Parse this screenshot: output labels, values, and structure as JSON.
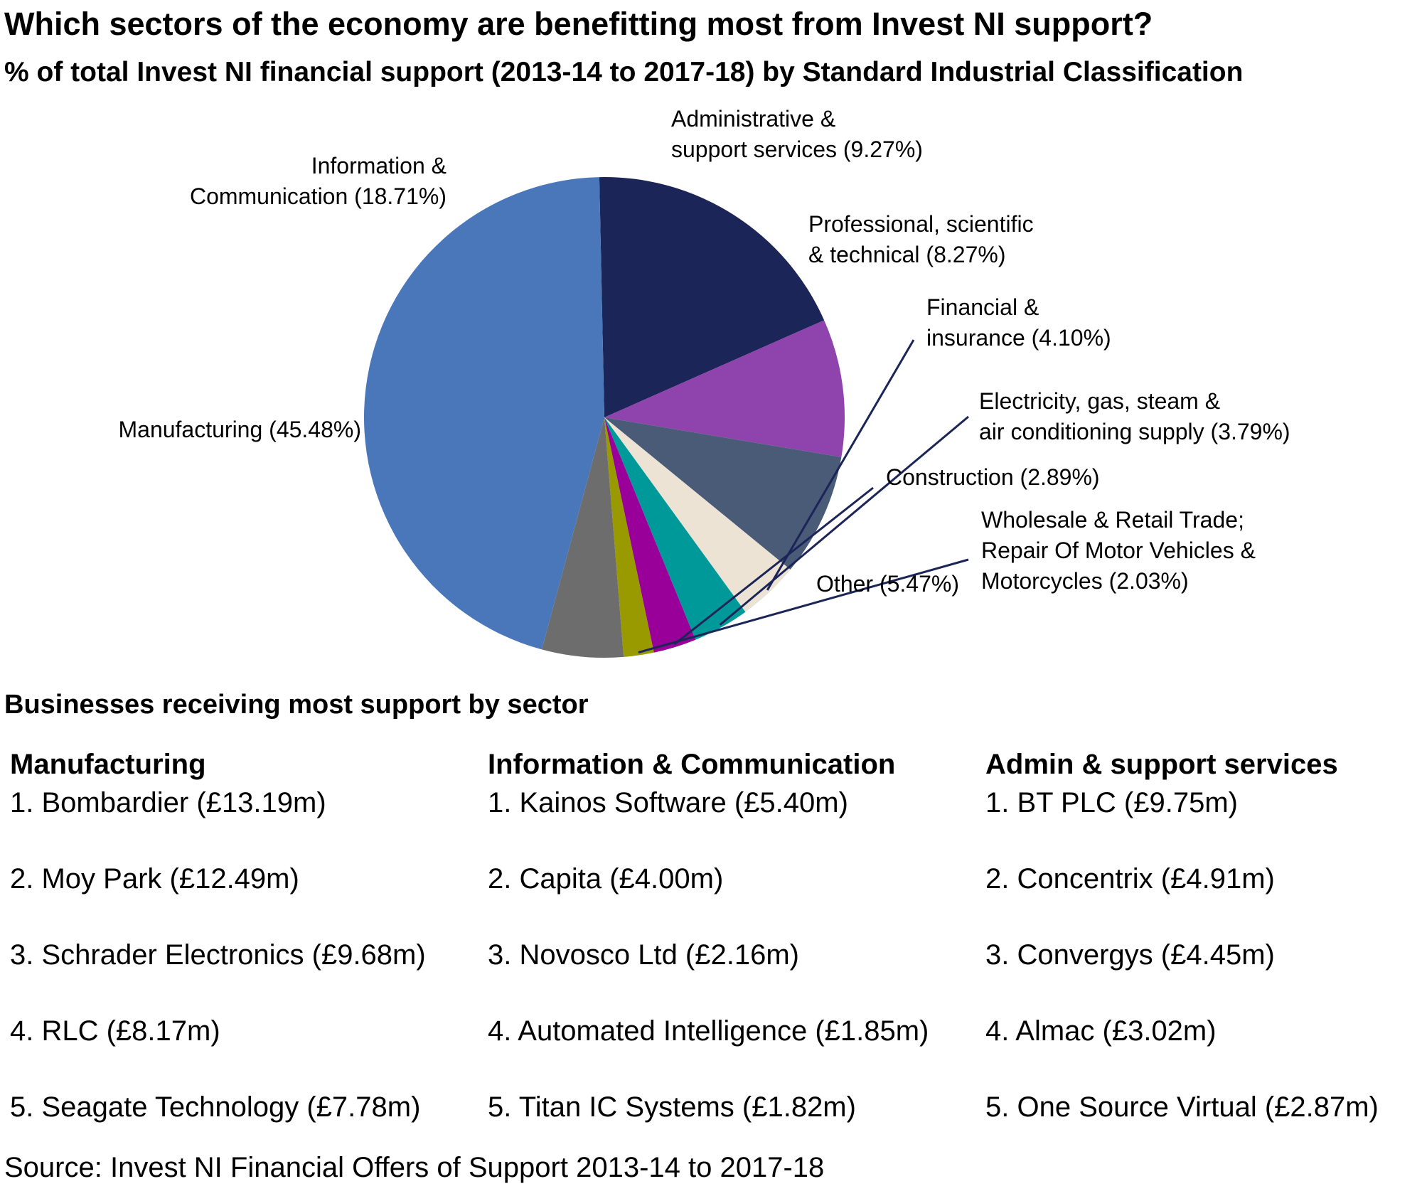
{
  "title": "Which sectors of the economy are benefitting most from Invest NI support?",
  "subtitle": "% of total Invest NI financial support (2013-14 to 2017-18) by Standard Industrial Classification",
  "chart_data": {
    "type": "pie",
    "title": "% of total Invest NI financial support (2013-14 to 2017-18) by Standard Industrial Classification",
    "slices": [
      {
        "label_lines": [
          "Information &",
          "Communication (18.71%)"
        ],
        "value": 18.71,
        "color": "#1c2557"
      },
      {
        "label_lines": [
          "Administrative &",
          "support services (9.27%)"
        ],
        "value": 9.27,
        "color": "#8e43ad"
      },
      {
        "label_lines": [
          "Professional, scientific",
          "& technical (8.27%)"
        ],
        "value": 8.27,
        "color": "#4a5b78"
      },
      {
        "label_lines": [
          "Financial &",
          "insurance (4.10%)"
        ],
        "value": 4.1,
        "color": "#ede3d4"
      },
      {
        "label_lines": [
          "Electricity, gas, steam &",
          "air conditioning supply  (3.79%)"
        ],
        "value": 3.79,
        "color": "#00999a"
      },
      {
        "label_lines": [
          "Construction (2.89%)"
        ],
        "value": 2.89,
        "color": "#990099"
      },
      {
        "label_lines": [
          "Wholesale & Retail Trade;",
          "Repair Of Motor Vehicles &",
          "Motorcycles (2.03%)"
        ],
        "value": 2.03,
        "color": "#999900"
      },
      {
        "label_lines": [
          "Other (5.47%)"
        ],
        "value": 5.47,
        "color": "#6d6d6d"
      },
      {
        "label_lines": [
          "Manufacturing (45.48%)"
        ],
        "value": 45.48,
        "color": "#4a77ba"
      }
    ],
    "leader_line_color": "#1c2557"
  },
  "businesses": {
    "heading": "Businesses receiving most support by sector",
    "columns": [
      {
        "heading": "Manufacturing",
        "items": [
          "1. Bombardier (£13.19m)",
          "2. Moy Park (£12.49m)",
          "3. Schrader Electronics (£9.68m)",
          "4. RLC (£8.17m)",
          "5. Seagate Technology (£7.78m)"
        ]
      },
      {
        "heading": "Information & Communication",
        "items": [
          "1. Kainos Software (£5.40m)",
          "2. Capita (£4.00m)",
          "3. Novosco Ltd (£2.16m)",
          "4. Automated Intelligence (£1.85m)",
          "5. Titan IC Systems (£1.82m)"
        ]
      },
      {
        "heading": "Admin & support services",
        "items": [
          "1. BT PLC (£9.75m)",
          "2. Concentrix (£4.91m)",
          "3. Convergys (£4.45m)",
          "4. Almac (£3.02m)",
          "5. One Source Virtual (£2.87m)"
        ]
      }
    ]
  },
  "source": "Source: Invest NI Financial Offers of Support 2013-14 to 2017-18"
}
